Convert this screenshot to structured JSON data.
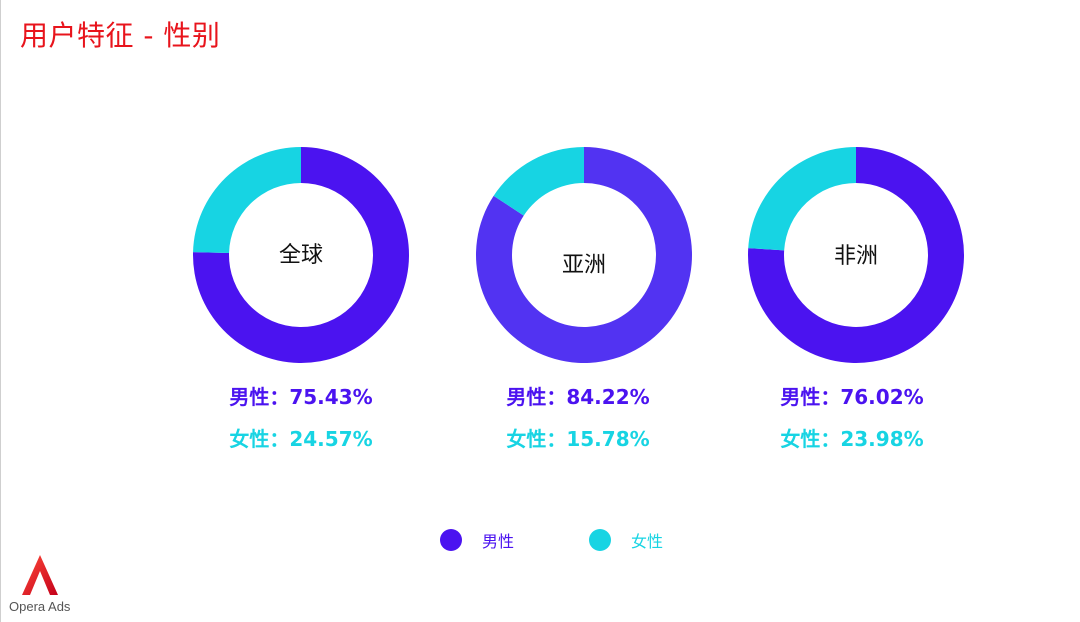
{
  "title": "用户特征 - 性别",
  "colors": {
    "male": "#4b13f0",
    "female": "#17d4e3",
    "title": "#e8141c"
  },
  "chart_data": {
    "type": "pie",
    "variant": "donut",
    "charts": [
      {
        "name": "全球",
        "center_label": "全球",
        "male_label": "男性：75.43%",
        "female_label": "女性：24.57%",
        "values": [
          75.43,
          24.57
        ],
        "male_color": "#4b13f0"
      },
      {
        "name": "亚洲",
        "center_label": "亚洲",
        "male_label": "男性：84.22%",
        "female_label": "女性：15.78%",
        "values": [
          84.22,
          15.78
        ],
        "male_color": "#5233f2"
      },
      {
        "name": "非洲",
        "center_label": "非洲",
        "male_label": "男性：76.02%",
        "female_label": "女性：23.98%",
        "values": [
          76.02,
          23.98
        ],
        "male_color": "#4b13f0"
      }
    ],
    "legend": [
      "男性",
      "女性"
    ],
    "legend_placement": "bottom-center"
  },
  "logo": {
    "text": "Opera Ads"
  }
}
